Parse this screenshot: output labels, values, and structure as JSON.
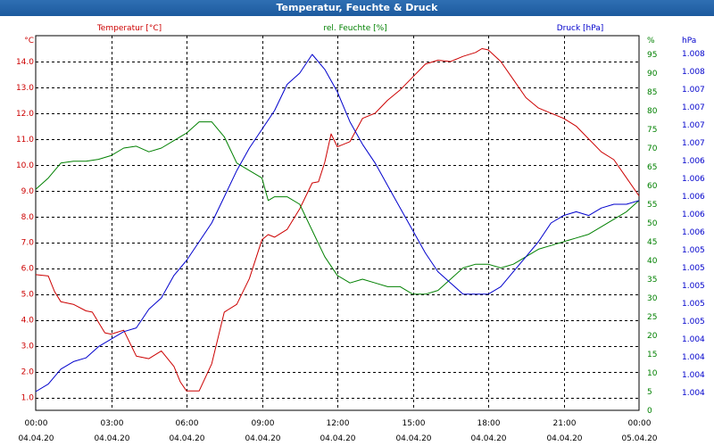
{
  "window": {
    "title": "Temperatur, Feuchte & Druck"
  },
  "colors": {
    "temperature": "#cc0000",
    "humidity": "#008000",
    "pressure": "#0000cc",
    "grid": "#000000",
    "axis_text": "#000000"
  },
  "chart_data": {
    "type": "line",
    "title": "Temperatur, Feuchte & Druck",
    "grid": true,
    "x_tick_times": [
      "00:00",
      "03:00",
      "06:00",
      "09:00",
      "12:00",
      "15:00",
      "18:00",
      "21:00",
      "00:00"
    ],
    "x_tick_dates": [
      "04.04.20",
      "04.04.20",
      "04.04.20",
      "04.04.20",
      "04.04.20",
      "04.04.20",
      "04.04.20",
      "04.04.20",
      "05.04.20"
    ],
    "x_range_hours": [
      0,
      24
    ],
    "axes": {
      "temperature": {
        "label": "Temperatur [°C]",
        "unit": "°C",
        "range": [
          0.5,
          15
        ],
        "ticks": [
          "1.0",
          "2.0",
          "3.0",
          "4.0",
          "5.0",
          "6.0",
          "7.0",
          "8.0",
          "9.0",
          "10.0",
          "11.0",
          "12.0",
          "13.0",
          "14.0"
        ]
      },
      "humidity": {
        "label": "rel. Feuchte [%]",
        "unit": "%",
        "range": [
          0,
          100
        ],
        "ticks": [
          "0",
          "5",
          "10",
          "15",
          "20",
          "25",
          "30",
          "35",
          "40",
          "45",
          "50",
          "55",
          "60",
          "65",
          "70",
          "75",
          "80",
          "85",
          "90",
          "95"
        ]
      },
      "pressure": {
        "label": "Druck [hPa]",
        "unit": "hPa",
        "ticks": [
          "1.004",
          "1.004",
          "1.004",
          "1.004",
          "1.005",
          "1.005",
          "1.005",
          "1.005",
          "1.005",
          "1.006",
          "1.006",
          "1.006",
          "1.006",
          "1.006",
          "1.007",
          "1.007",
          "1.007",
          "1.007",
          "1.008",
          "1.008"
        ]
      }
    },
    "series": [
      {
        "name": "Temperatur [°C]",
        "axis": "temperature",
        "x": [
          0,
          0.5,
          0.75,
          1,
          1.5,
          2,
          2.25,
          2.75,
          3,
          3.5,
          4,
          4.5,
          5,
          5.5,
          5.75,
          6,
          6.5,
          7,
          7.5,
          8,
          8.5,
          9,
          9.25,
          9.5,
          10,
          10.5,
          11,
          11.25,
          11.5,
          11.75,
          12,
          12.5,
          13,
          13.5,
          14,
          14.5,
          15,
          15.5,
          16,
          16.5,
          17,
          17.5,
          17.75,
          18,
          18.5,
          19,
          19.5,
          20,
          20.5,
          21,
          21.5,
          22,
          22.5,
          23,
          23.5,
          24
        ],
        "values": [
          5.75,
          5.7,
          5.1,
          4.7,
          4.6,
          4.35,
          4.3,
          3.5,
          3.45,
          3.6,
          2.6,
          2.5,
          2.8,
          2.2,
          1.6,
          1.25,
          1.25,
          2.3,
          4.3,
          4.6,
          5.6,
          7.1,
          7.3,
          7.2,
          7.5,
          8.3,
          9.3,
          9.35,
          10.1,
          11.2,
          10.7,
          10.9,
          11.8,
          12.0,
          12.5,
          12.9,
          13.4,
          13.9,
          14.05,
          14.0,
          14.2,
          14.35,
          14.5,
          14.45,
          14.0,
          13.3,
          12.6,
          12.2,
          12.0,
          11.8,
          11.5,
          11.0,
          10.5,
          10.2,
          9.5,
          8.8
        ]
      },
      {
        "name": "rel. Feuchte [%]",
        "axis": "humidity",
        "x": [
          0,
          0.5,
          1,
          1.5,
          2,
          2.5,
          3,
          3.5,
          4,
          4.5,
          5,
          5.5,
          6,
          6.5,
          7,
          7.5,
          8,
          8.5,
          9,
          9.25,
          9.5,
          10,
          10.5,
          11,
          11.5,
          12,
          12.5,
          13,
          13.5,
          14,
          14.5,
          15,
          15.5,
          16,
          16.5,
          17,
          17.5,
          18,
          18.5,
          19,
          19.5,
          20,
          20.5,
          21,
          21.5,
          22,
          22.5,
          23,
          23.5,
          24
        ],
        "values": [
          59,
          62,
          66,
          66.5,
          66.5,
          67,
          68,
          70,
          70.5,
          69,
          70,
          72,
          74,
          77,
          77,
          73,
          66,
          64,
          62,
          56,
          57,
          57,
          55,
          48,
          41,
          36,
          34,
          35,
          34,
          33,
          33,
          31,
          31,
          32,
          35,
          38,
          39,
          39,
          38,
          39,
          41,
          43,
          44,
          45,
          46,
          47,
          49,
          51,
          53,
          56
        ]
      },
      {
        "name": "Druck [hPa]",
        "axis": "pressure",
        "x": [
          0,
          0.5,
          1,
          1.5,
          2,
          2.5,
          3,
          3.5,
          4,
          4.5,
          5,
          5.5,
          6,
          6.5,
          7,
          7.5,
          8,
          8.5,
          9,
          9.5,
          10,
          10.5,
          11,
          11.5,
          12,
          12.5,
          13,
          13.5,
          14,
          14.5,
          15,
          15.5,
          16,
          16.5,
          17,
          17.5,
          18,
          18.5,
          19,
          19.5,
          20,
          20.5,
          21,
          21.5,
          22,
          22.5,
          23,
          23.5,
          24
        ],
        "values": [
          5,
          7,
          11,
          13,
          14,
          17,
          19,
          21,
          22,
          27,
          30,
          36,
          40,
          45,
          50,
          57,
          64,
          70,
          75,
          80,
          87,
          90,
          95,
          91,
          85,
          77,
          71,
          66,
          60,
          54,
          48,
          42,
          37,
          34,
          31,
          31,
          31,
          33,
          37,
          41,
          45,
          50,
          52,
          53,
          52,
          54,
          55,
          55,
          56
        ]
      }
    ]
  }
}
